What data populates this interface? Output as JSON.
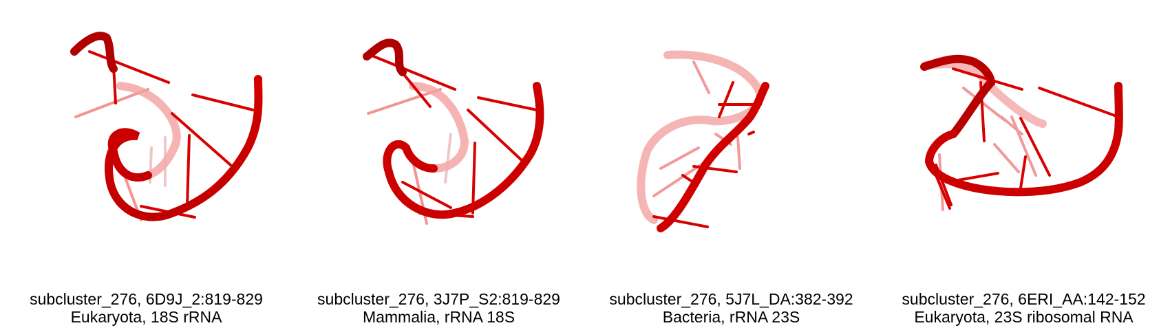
{
  "figure": {
    "color": "#e00000",
    "panels": [
      {
        "caption_line1": "subcluster_276, 6D9J_2:819-829",
        "caption_line2": "Eukaryota, 18S rRNA"
      },
      {
        "caption_line1": "subcluster_276, 3J7P_S2:819-829",
        "caption_line2": "Mammalia, rRNA 18S"
      },
      {
        "caption_line1": "subcluster_276, 5J7L_DA:382-392",
        "caption_line2": "Bacteria, rRNA 23S"
      },
      {
        "caption_line1": "subcluster_276, 6ERI_AA:142-152",
        "caption_line2": "Eukaryota, 23S ribosomal RNA"
      }
    ]
  }
}
